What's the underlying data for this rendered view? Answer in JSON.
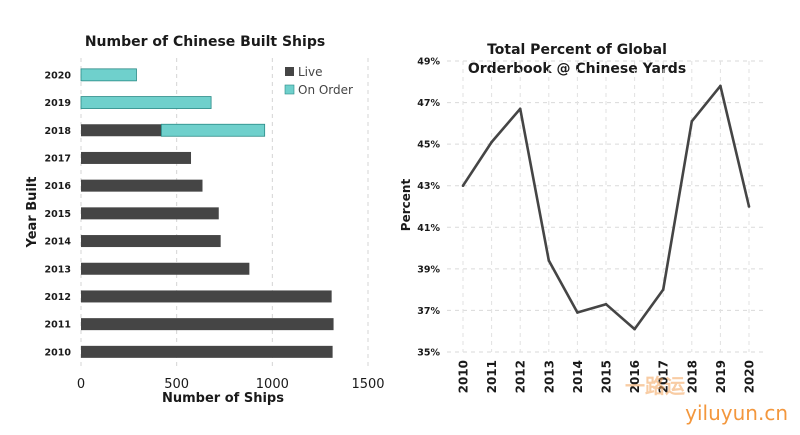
{
  "chart_data": [
    {
      "type": "bar",
      "orientation": "horizontal",
      "stacked": true,
      "title": "Number of Chinese Built Ships",
      "xlabel": "Number of Ships",
      "ylabel": "Year Built",
      "categories": [
        "2020",
        "2019",
        "2018",
        "2017",
        "2016",
        "2015",
        "2014",
        "2013",
        "2012",
        "2011",
        "2010"
      ],
      "series": [
        {
          "name": "Live",
          "color": "#454545",
          "values": [
            0,
            0,
            420,
            575,
            635,
            720,
            730,
            880,
            1310,
            1320,
            1315
          ]
        },
        {
          "name": "On Order",
          "color": "#6fd0cc",
          "values": [
            290,
            680,
            540,
            0,
            0,
            0,
            0,
            0,
            0,
            0,
            0
          ]
        }
      ],
      "xlim": [
        0,
        1500
      ],
      "xticks": [
        "0",
        "500",
        "1000",
        "1500"
      ],
      "grid": "vertical dashed",
      "legend_position": "top-right"
    },
    {
      "type": "line",
      "title": [
        "Total Percent of Global",
        "Orderbook @ Chinese Yards"
      ],
      "xlabel": "",
      "ylabel": "Percent",
      "x": [
        "2010",
        "2011",
        "2012",
        "2013",
        "2014",
        "2015",
        "2016",
        "2017",
        "2018",
        "2019",
        "2020"
      ],
      "series": [
        {
          "color": "#454545",
          "values": [
            43.0,
            45.1,
            46.7,
            39.4,
            36.9,
            37.3,
            36.1,
            38.0,
            46.1,
            47.8,
            42.0
          ]
        }
      ],
      "ylim": [
        35,
        49
      ],
      "yticks": [
        "35%",
        "37%",
        "39%",
        "41%",
        "43%",
        "45%",
        "47%",
        "49%"
      ],
      "grid": "dashed",
      "legend_position": "none"
    }
  ],
  "watermark": {
    "glyphs": "一路运",
    "text": "yiluyun.cn"
  }
}
